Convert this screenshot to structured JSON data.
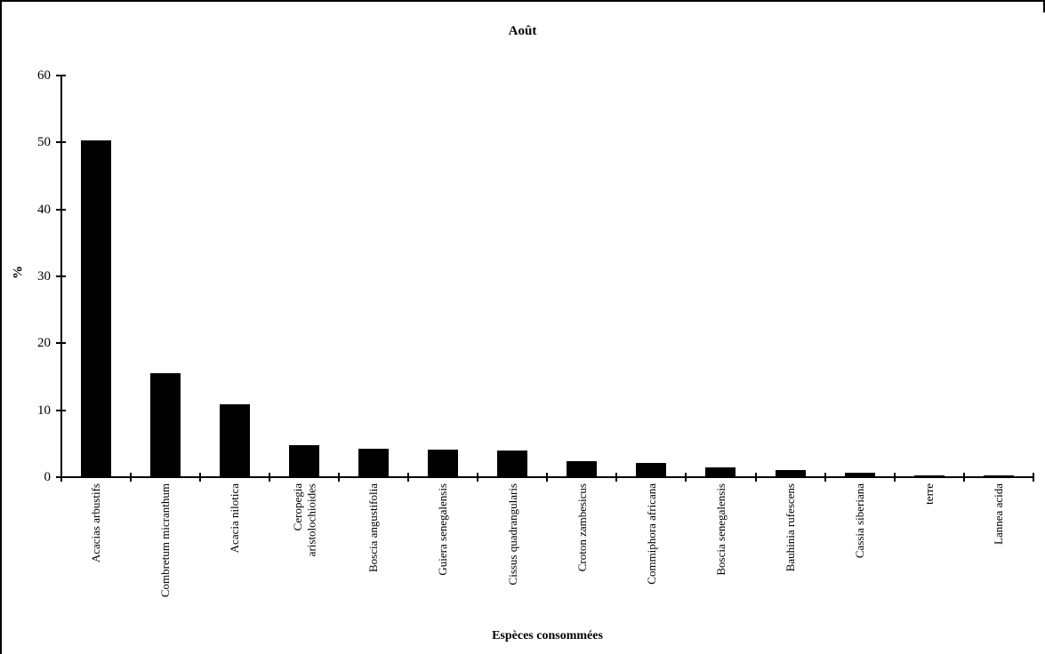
{
  "chart": {
    "title": "Août",
    "y_axis_label": "%",
    "x_axis_label": "Espèces consommées"
  },
  "chart_data": {
    "type": "bar",
    "title": "Août",
    "xlabel": "Espèces consommées",
    "ylabel": "%",
    "ylim": [
      0,
      60
    ],
    "yticks": [
      0,
      10,
      20,
      30,
      40,
      50,
      60
    ],
    "grid": false,
    "legend": "none",
    "bar_color": "#000000",
    "background_color": "#ffffff",
    "categories": [
      "Acacias arbustifs",
      "Combretum micranthum",
      "Acacia nilotica",
      "Ceropegia\naristolochioides",
      "Boscia angustifolia",
      "Guiera senegalensis",
      "Cissus quadrangularis",
      "Croton zambesicus",
      "Commiphora africana",
      "Boscia senegalensis",
      "Bauhinia rufescens",
      "Cassia siberiana",
      "terre",
      "Lannea acida"
    ],
    "values": [
      50.3,
      15.5,
      10.9,
      4.8,
      4.3,
      4.1,
      4.0,
      2.4,
      2.1,
      1.5,
      1.0,
      0.7,
      0.2,
      0.3
    ]
  }
}
